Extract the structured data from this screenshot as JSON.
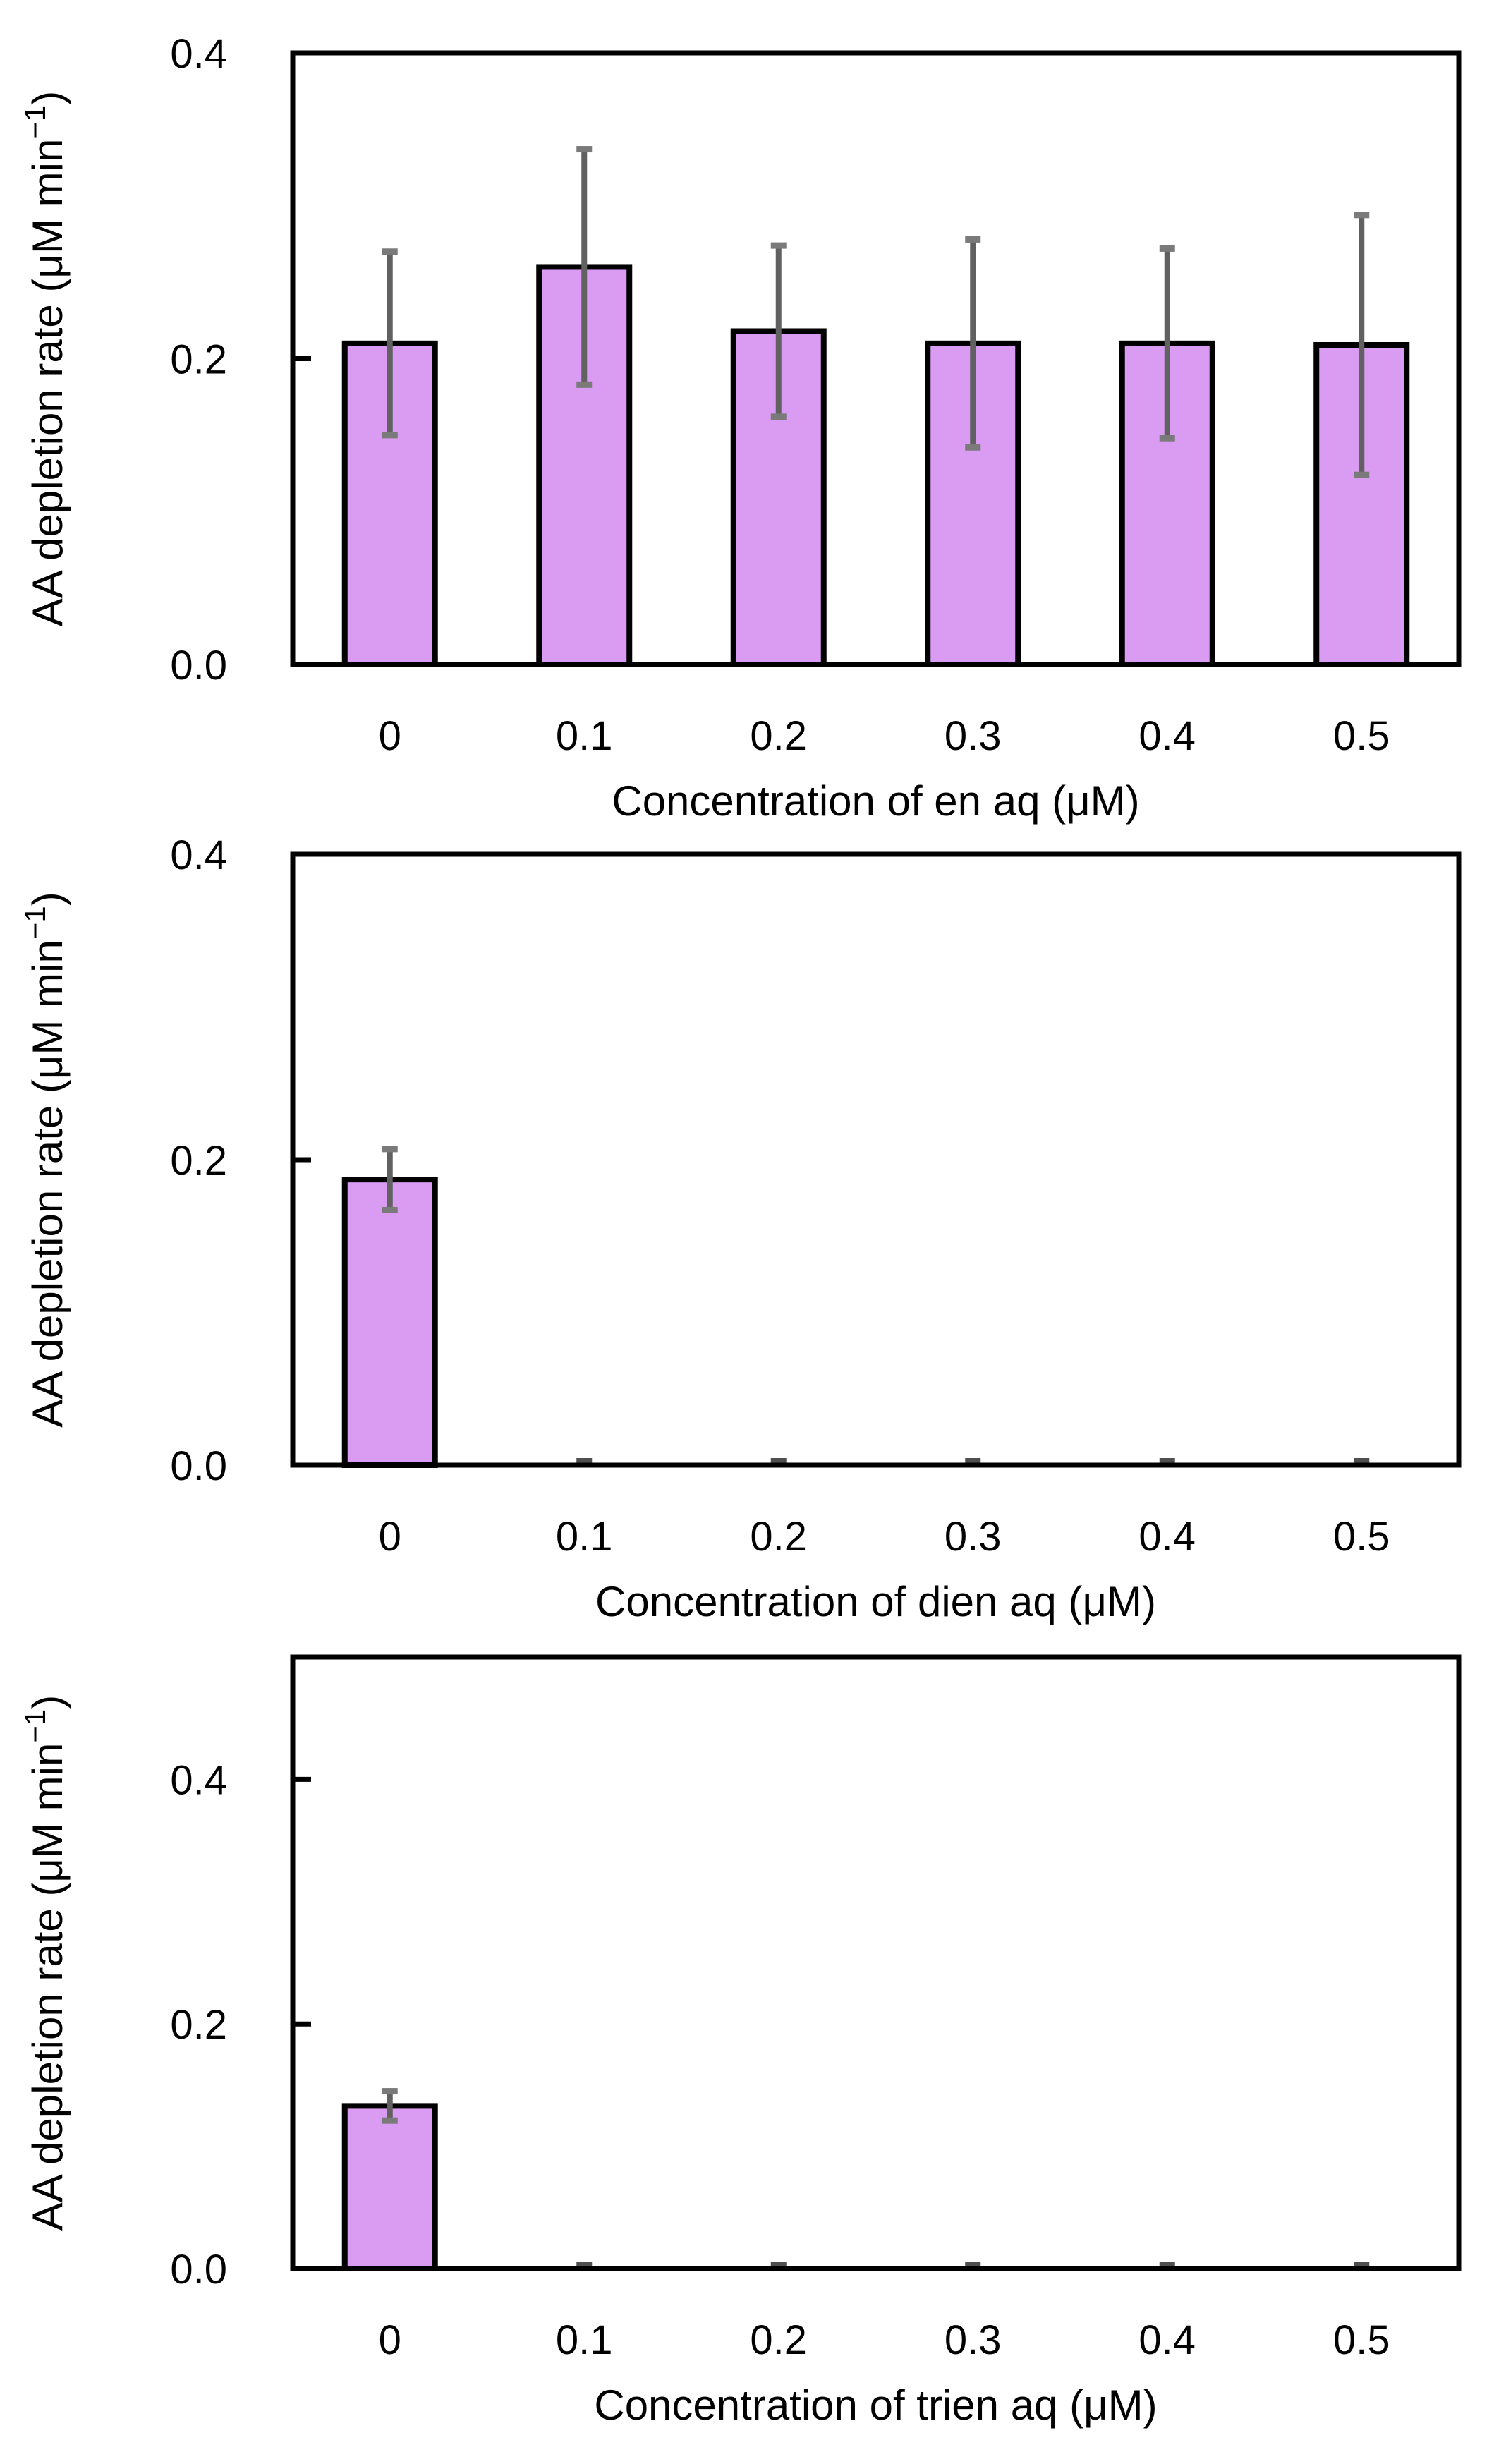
{
  "figure": {
    "background": "#ffffff",
    "description_texts": {}
  },
  "chart_data": [
    {
      "type": "bar",
      "title": "",
      "xlabel": "Concentration of en aq (μM)",
      "ylabel": "AA depletion rate (μM min−1)",
      "ylabel_main": "AA depletion rate (μM min",
      "ylabel_sup": "−1",
      "ylabel_end": ")",
      "categories": [
        "0",
        "0.1",
        "0.2",
        "0.3",
        "0.4",
        "0.5"
      ],
      "values": [
        0.21,
        0.26,
        0.218,
        0.21,
        0.21,
        0.209
      ],
      "errors": [
        0.06,
        0.077,
        0.056,
        0.068,
        0.062,
        0.085
      ],
      "ylim": [
        0,
        0.4
      ],
      "yticks": [
        0,
        0.2,
        0.4
      ],
      "ytick_labels": [
        "0.0",
        "0.2",
        "0.4"
      ],
      "grid": "off",
      "legend": "none"
    },
    {
      "type": "bar",
      "title": "",
      "xlabel": "Concentration of dien aq (μM)",
      "ylabel": "AA depletion rate (μM min−1)",
      "ylabel_main": "AA depletion rate (μM min",
      "ylabel_sup": "−1",
      "ylabel_end": ")",
      "categories": [
        "0",
        "0.1",
        "0.2",
        "0.3",
        "0.4",
        "0.5"
      ],
      "values": [
        0.187,
        0,
        0,
        0,
        0,
        0
      ],
      "errors": [
        0.02,
        0.002,
        0.002,
        0.002,
        0.002,
        0.002
      ],
      "ylim": [
        0,
        0.4
      ],
      "yticks": [
        0,
        0.2,
        0.4
      ],
      "ytick_labels": [
        "0.0",
        "0.2",
        "0.4"
      ],
      "grid": "off",
      "legend": "none"
    },
    {
      "type": "bar",
      "title": "",
      "xlabel": "Concentration of trien aq (μM)",
      "ylabel": "AA depletion rate (μM min−1)",
      "ylabel_main": "AA depletion rate (μM min",
      "ylabel_sup": "−1",
      "ylabel_end": ")",
      "categories": [
        "0",
        "0.1",
        "0.2",
        "0.3",
        "0.4",
        "0.5"
      ],
      "values": [
        0.133,
        0,
        0,
        0,
        0,
        0
      ],
      "errors": [
        0.012,
        0.002,
        0.002,
        0.002,
        0.002,
        0.002
      ],
      "ylim": [
        0,
        0.5
      ],
      "yticks": [
        0,
        0.2,
        0.4
      ],
      "ytick_labels": [
        "0.0",
        "0.2",
        "0.4"
      ],
      "grid": "off",
      "legend": "none"
    }
  ],
  "style": {
    "bar_fill": "#DA9BF3",
    "bar_edge": "#000000",
    "error_line": "#616161",
    "error_cap": "#7a7a7a",
    "zero_dash": "#4f4f4f",
    "frame": "#000000",
    "text": "#000000"
  }
}
